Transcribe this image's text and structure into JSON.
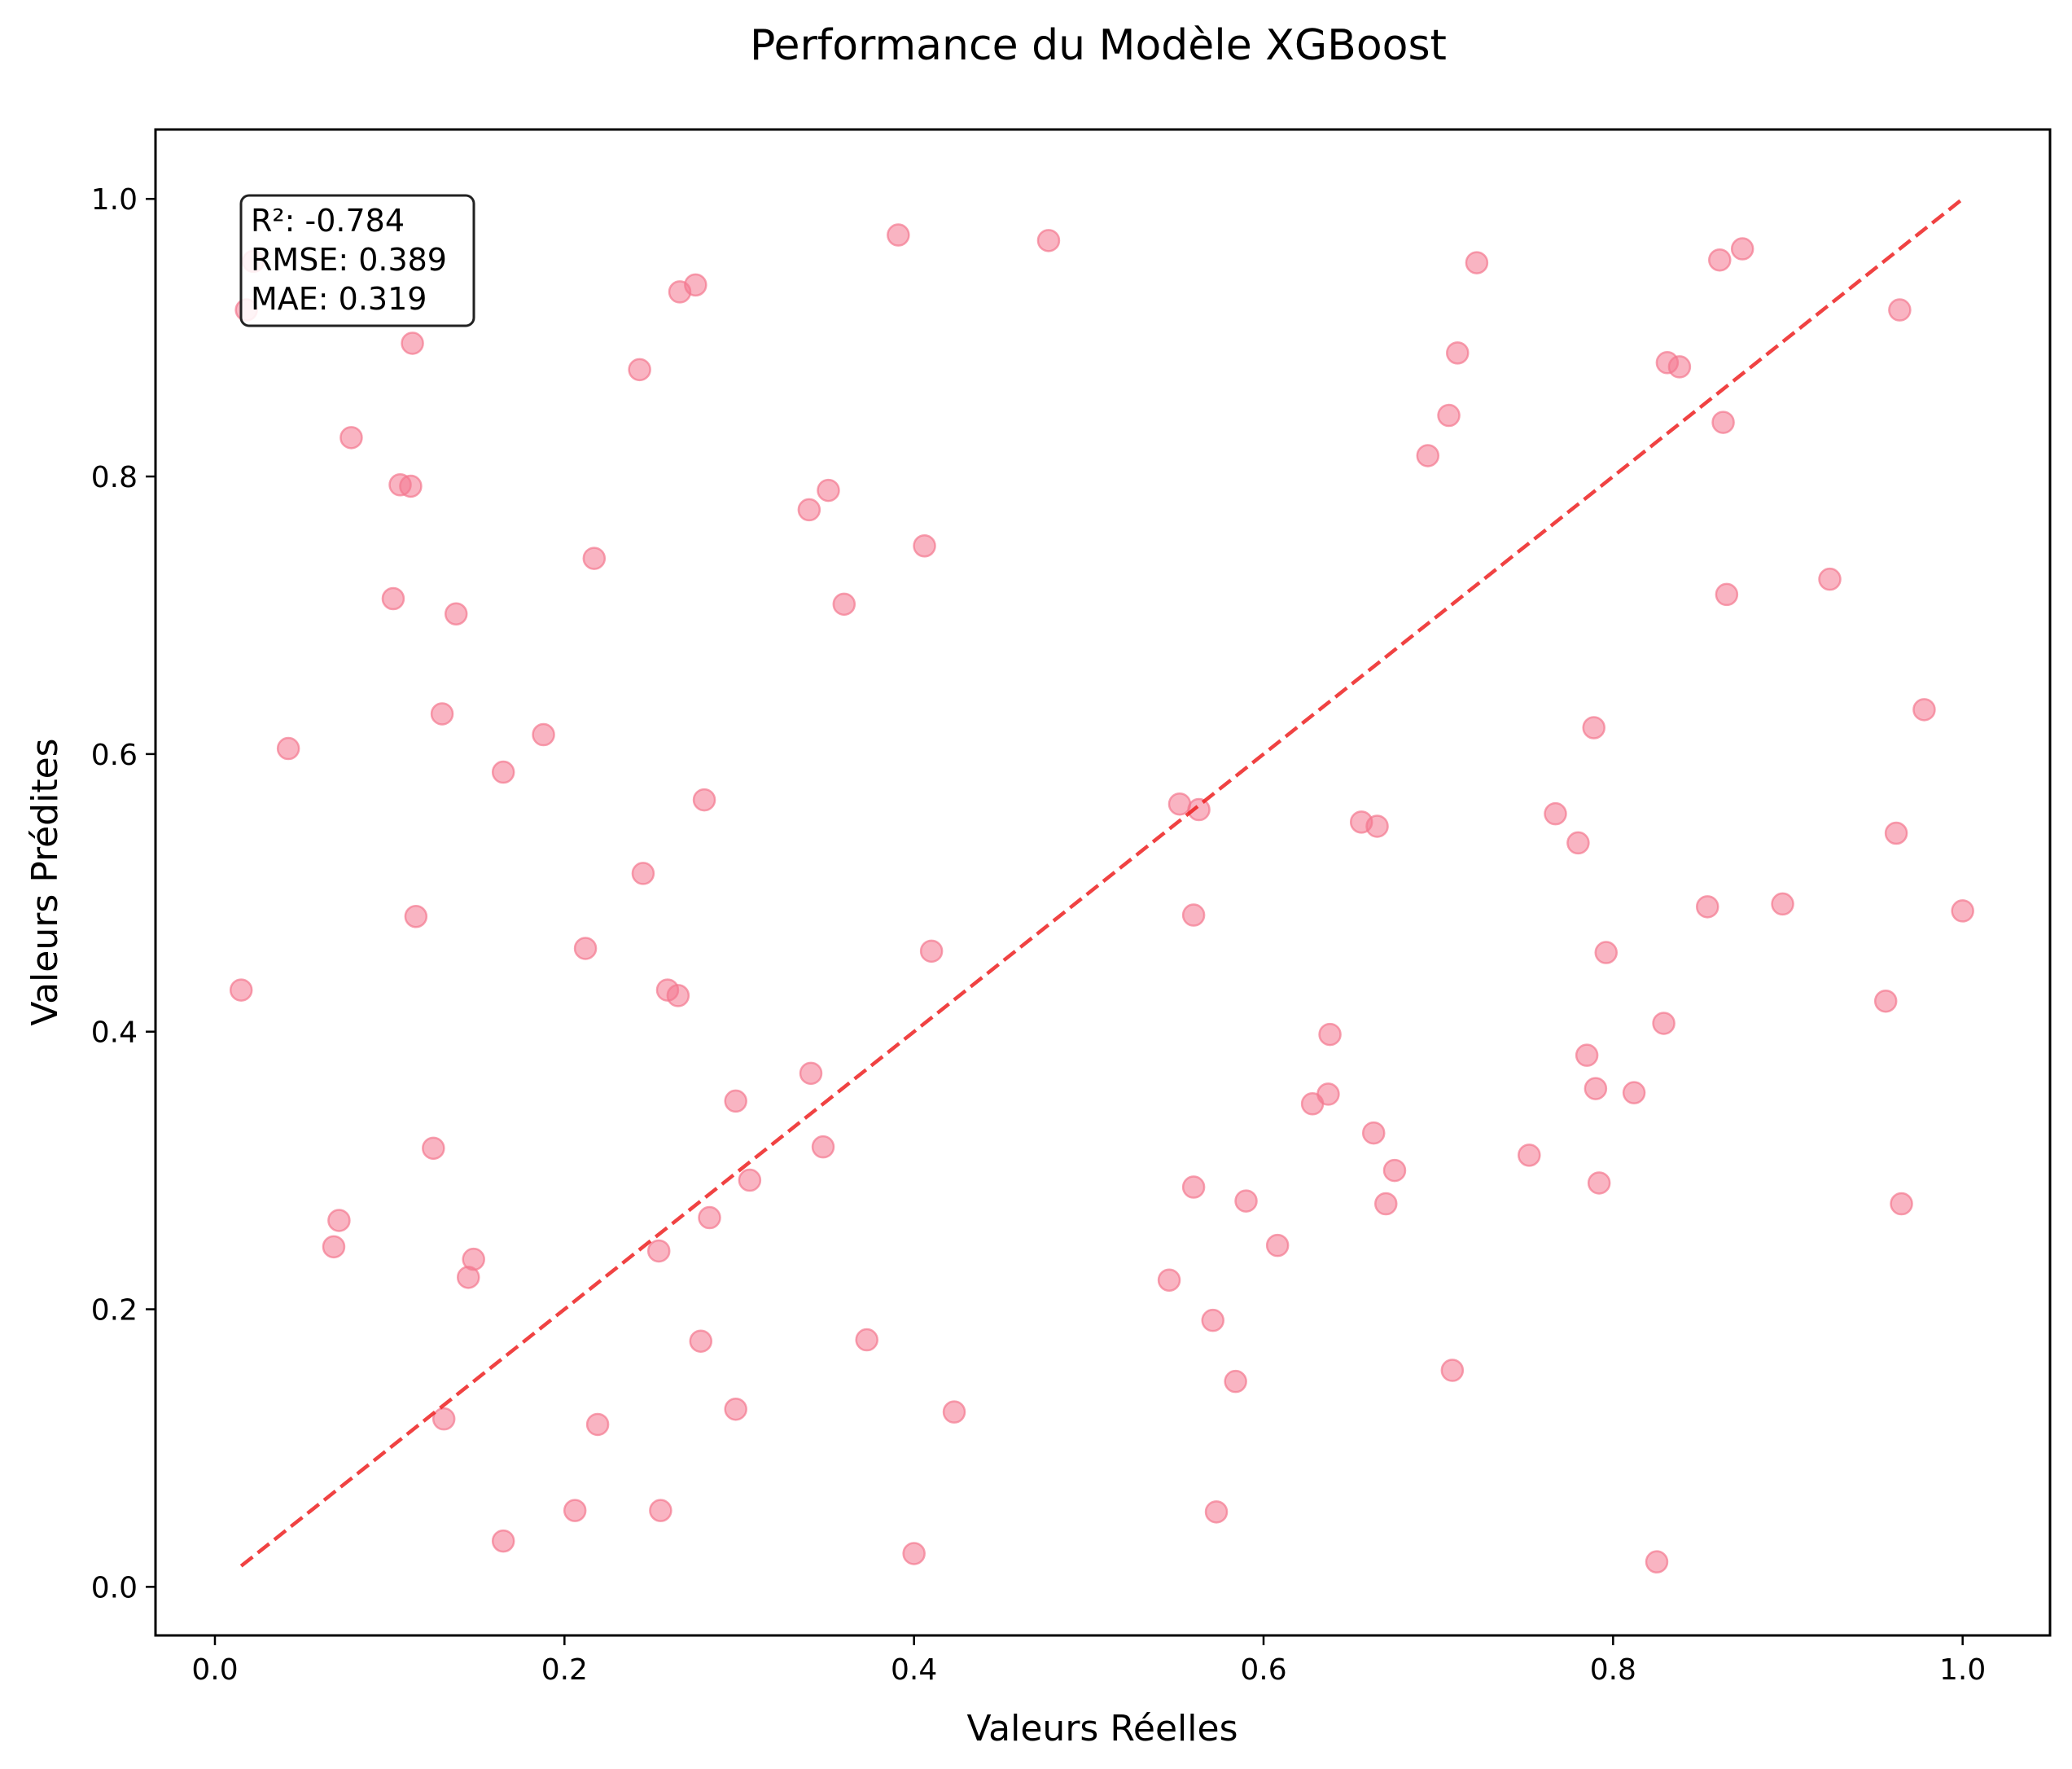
{
  "chart_data": {
    "type": "scatter",
    "title": "Performance du Modèle XGBoost",
    "xlabel": "Valeurs Réelles",
    "ylabel": "Valeurs Prédites",
    "xlim": [
      -0.034,
      1.05
    ],
    "ylim": [
      -0.035,
      1.05
    ],
    "xticks": [
      0.0,
      0.2,
      0.4,
      0.6,
      0.8,
      1.0
    ],
    "xtick_labels": [
      "0.0",
      "0.2",
      "0.4",
      "0.6",
      "0.8",
      "1.0"
    ],
    "yticks": [
      0.0,
      0.2,
      0.4,
      0.6,
      0.8,
      1.0
    ],
    "ytick_labels": [
      "0.0",
      "0.2",
      "0.4",
      "0.6",
      "0.8",
      "1.0"
    ],
    "grid": false,
    "point_color": "#f4778f",
    "reference_line": {
      "x": [
        0.015,
        0.999
      ],
      "y": [
        0.015,
        0.999
      ],
      "color": "#ee2222",
      "style": "dashed"
    },
    "stats_box": {
      "lines": [
        "R²: -0.784",
        "RMSE: 0.389",
        "MAE: 0.319"
      ],
      "placement": "top-left"
    },
    "points": [
      {
        "x": 0.015,
        "y": 0.43
      },
      {
        "x": 0.018,
        "y": 0.92
      },
      {
        "x": 0.022,
        "y": 0.955
      },
      {
        "x": 0.042,
        "y": 0.604
      },
      {
        "x": 0.068,
        "y": 0.245
      },
      {
        "x": 0.071,
        "y": 0.264
      },
      {
        "x": 0.078,
        "y": 0.828
      },
      {
        "x": 0.102,
        "y": 0.712
      },
      {
        "x": 0.106,
        "y": 0.794
      },
      {
        "x": 0.112,
        "y": 0.793
      },
      {
        "x": 0.113,
        "y": 0.896
      },
      {
        "x": 0.115,
        "y": 0.483
      },
      {
        "x": 0.125,
        "y": 0.316
      },
      {
        "x": 0.13,
        "y": 0.629
      },
      {
        "x": 0.131,
        "y": 0.121
      },
      {
        "x": 0.138,
        "y": 0.701
      },
      {
        "x": 0.145,
        "y": 0.223
      },
      {
        "x": 0.148,
        "y": 0.236
      },
      {
        "x": 0.165,
        "y": 0.033
      },
      {
        "x": 0.165,
        "y": 0.587
      },
      {
        "x": 0.188,
        "y": 0.614
      },
      {
        "x": 0.206,
        "y": 0.055
      },
      {
        "x": 0.212,
        "y": 0.46
      },
      {
        "x": 0.217,
        "y": 0.741
      },
      {
        "x": 0.219,
        "y": 0.117
      },
      {
        "x": 0.243,
        "y": 0.877
      },
      {
        "x": 0.245,
        "y": 0.514
      },
      {
        "x": 0.254,
        "y": 0.242
      },
      {
        "x": 0.255,
        "y": 0.055
      },
      {
        "x": 0.259,
        "y": 0.43
      },
      {
        "x": 0.265,
        "y": 0.426
      },
      {
        "x": 0.266,
        "y": 0.933
      },
      {
        "x": 0.275,
        "y": 0.938
      },
      {
        "x": 0.278,
        "y": 0.177
      },
      {
        "x": 0.28,
        "y": 0.567
      },
      {
        "x": 0.283,
        "y": 0.266
      },
      {
        "x": 0.298,
        "y": 0.35
      },
      {
        "x": 0.298,
        "y": 0.128
      },
      {
        "x": 0.306,
        "y": 0.293
      },
      {
        "x": 0.34,
        "y": 0.776
      },
      {
        "x": 0.341,
        "y": 0.37
      },
      {
        "x": 0.348,
        "y": 0.317
      },
      {
        "x": 0.351,
        "y": 0.79
      },
      {
        "x": 0.36,
        "y": 0.708
      },
      {
        "x": 0.373,
        "y": 0.178
      },
      {
        "x": 0.391,
        "y": 0.974
      },
      {
        "x": 0.4,
        "y": 0.024
      },
      {
        "x": 0.406,
        "y": 0.75
      },
      {
        "x": 0.41,
        "y": 0.458
      },
      {
        "x": 0.423,
        "y": 0.126
      },
      {
        "x": 0.477,
        "y": 0.97
      },
      {
        "x": 0.546,
        "y": 0.221
      },
      {
        "x": 0.552,
        "y": 0.564
      },
      {
        "x": 0.56,
        "y": 0.288
      },
      {
        "x": 0.56,
        "y": 0.484
      },
      {
        "x": 0.563,
        "y": 0.56
      },
      {
        "x": 0.571,
        "y": 0.192
      },
      {
        "x": 0.573,
        "y": 0.054
      },
      {
        "x": 0.584,
        "y": 0.148
      },
      {
        "x": 0.59,
        "y": 0.278
      },
      {
        "x": 0.608,
        "y": 0.246
      },
      {
        "x": 0.628,
        "y": 0.348
      },
      {
        "x": 0.637,
        "y": 0.355
      },
      {
        "x": 0.638,
        "y": 0.398
      },
      {
        "x": 0.656,
        "y": 0.551
      },
      {
        "x": 0.663,
        "y": 0.327
      },
      {
        "x": 0.665,
        "y": 0.548
      },
      {
        "x": 0.67,
        "y": 0.276
      },
      {
        "x": 0.675,
        "y": 0.3
      },
      {
        "x": 0.694,
        "y": 0.815
      },
      {
        "x": 0.706,
        "y": 0.844
      },
      {
        "x": 0.708,
        "y": 0.156
      },
      {
        "x": 0.711,
        "y": 0.889
      },
      {
        "x": 0.722,
        "y": 0.954
      },
      {
        "x": 0.752,
        "y": 0.311
      },
      {
        "x": 0.767,
        "y": 0.557
      },
      {
        "x": 0.78,
        "y": 0.536
      },
      {
        "x": 0.785,
        "y": 0.383
      },
      {
        "x": 0.789,
        "y": 0.619
      },
      {
        "x": 0.79,
        "y": 0.359
      },
      {
        "x": 0.792,
        "y": 0.291
      },
      {
        "x": 0.796,
        "y": 0.457
      },
      {
        "x": 0.812,
        "y": 0.356
      },
      {
        "x": 0.825,
        "y": 0.018
      },
      {
        "x": 0.829,
        "y": 0.406
      },
      {
        "x": 0.831,
        "y": 0.882
      },
      {
        "x": 0.838,
        "y": 0.879
      },
      {
        "x": 0.854,
        "y": 0.49
      },
      {
        "x": 0.861,
        "y": 0.956
      },
      {
        "x": 0.863,
        "y": 0.839
      },
      {
        "x": 0.865,
        "y": 0.715
      },
      {
        "x": 0.874,
        "y": 0.964
      },
      {
        "x": 0.897,
        "y": 0.492
      },
      {
        "x": 0.924,
        "y": 0.726
      },
      {
        "x": 0.956,
        "y": 0.422
      },
      {
        "x": 0.962,
        "y": 0.543
      },
      {
        "x": 0.964,
        "y": 0.92
      },
      {
        "x": 0.965,
        "y": 0.276
      },
      {
        "x": 0.978,
        "y": 0.632
      },
      {
        "x": 1.0,
        "y": 0.487
      }
    ]
  }
}
